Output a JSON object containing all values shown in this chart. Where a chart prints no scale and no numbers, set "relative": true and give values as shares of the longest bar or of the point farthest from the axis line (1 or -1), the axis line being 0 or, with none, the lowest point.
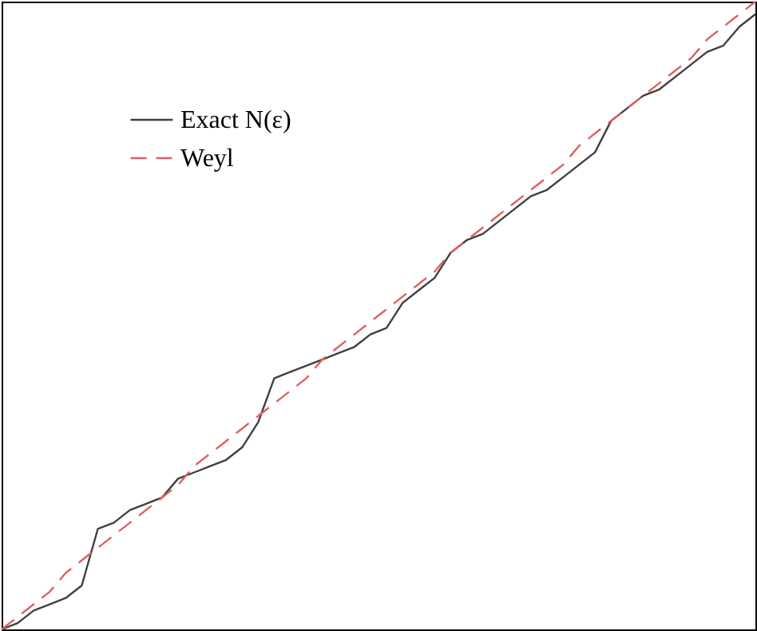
{
  "chart_data": {
    "type": "line",
    "relative": true,
    "legend": "top left",
    "grid": false,
    "categories": [
      null,
      null,
      null,
      null,
      null,
      null,
      null,
      null,
      null,
      null,
      null,
      null,
      null,
      null,
      null,
      null,
      null,
      null,
      null,
      null,
      null,
      null,
      null,
      null,
      null,
      null,
      null,
      null,
      null,
      null,
      null,
      null,
      null,
      null,
      null,
      null,
      null,
      null,
      null,
      null,
      null,
      null,
      null,
      null,
      null,
      null,
      null,
      null
    ],
    "series": [
      {
        "name": "Exact N(ε)",
        "color": "#404040",
        "line_style": "solid",
        "values": [
          0,
          0.01,
          0.03,
          0.04,
          0.05,
          0.07,
          0.16,
          0.17,
          0.19,
          0.2,
          0.21,
          0.24,
          0.25,
          0.26,
          0.27,
          0.29,
          0.33,
          0.4,
          0.41,
          0.42,
          0.43,
          0.44,
          0.45,
          0.47,
          0.48,
          0.52,
          0.54,
          0.56,
          0.6,
          0.62,
          0.63,
          0.65,
          0.67,
          0.69,
          0.7,
          0.72,
          0.74,
          0.76,
          0.81,
          0.83,
          0.85,
          0.86,
          0.88,
          0.9,
          0.92,
          0.93,
          0.96,
          0.98
        ]
      },
      {
        "name": "Weyl",
        "color": "#e06060",
        "line_style": "dashed",
        "values": [
          0,
          0.02,
          0.04,
          0.06,
          0.09,
          0.11,
          0.13,
          0.15,
          0.17,
          0.19,
          0.21,
          0.23,
          0.26,
          0.28,
          0.3,
          0.32,
          0.34,
          0.36,
          0.38,
          0.4,
          0.43,
          0.45,
          0.47,
          0.49,
          0.51,
          0.53,
          0.55,
          0.57,
          0.6,
          0.62,
          0.64,
          0.66,
          0.68,
          0.7,
          0.72,
          0.74,
          0.77,
          0.79,
          0.81,
          0.83,
          0.85,
          0.87,
          0.89,
          0.91,
          0.94,
          0.96,
          0.98,
          1.0
        ]
      }
    ]
  }
}
